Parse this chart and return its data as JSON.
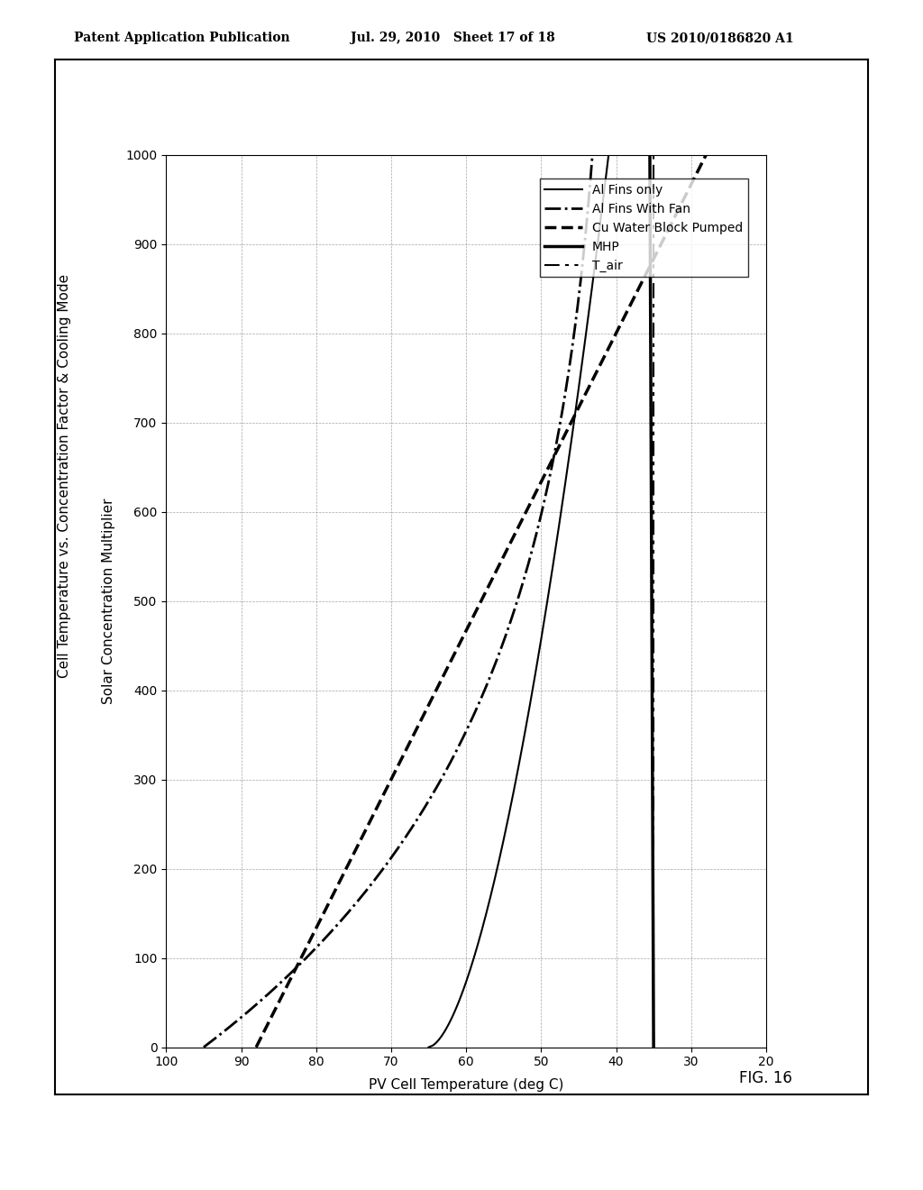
{
  "header_left": "Patent Application Publication",
  "header_center": "Jul. 29, 2010   Sheet 17 of 18",
  "header_right": "US 2010/0186820 A1",
  "fig_label": "FIG. 16",
  "title": "Cell Temperature vs. Concentration Factor & Cooling Mode",
  "xlabel": "Solar Concentration Multiplier",
  "ylabel": "PV Cell Temperature (deg C)",
  "xlim": [
    0,
    1000
  ],
  "ylim": [
    20,
    100
  ],
  "xticks": [
    0,
    100,
    200,
    300,
    400,
    500,
    600,
    700,
    800,
    900,
    1000
  ],
  "yticks": [
    20,
    30,
    40,
    50,
    60,
    70,
    80,
    90,
    100
  ],
  "legend_entries": [
    "Al Fins only",
    "Al Fins With Fan",
    "Cu Water Block Pumped",
    "MHP",
    "T_air"
  ],
  "background_color": "#ffffff",
  "plot_bg_color": "#ffffff"
}
